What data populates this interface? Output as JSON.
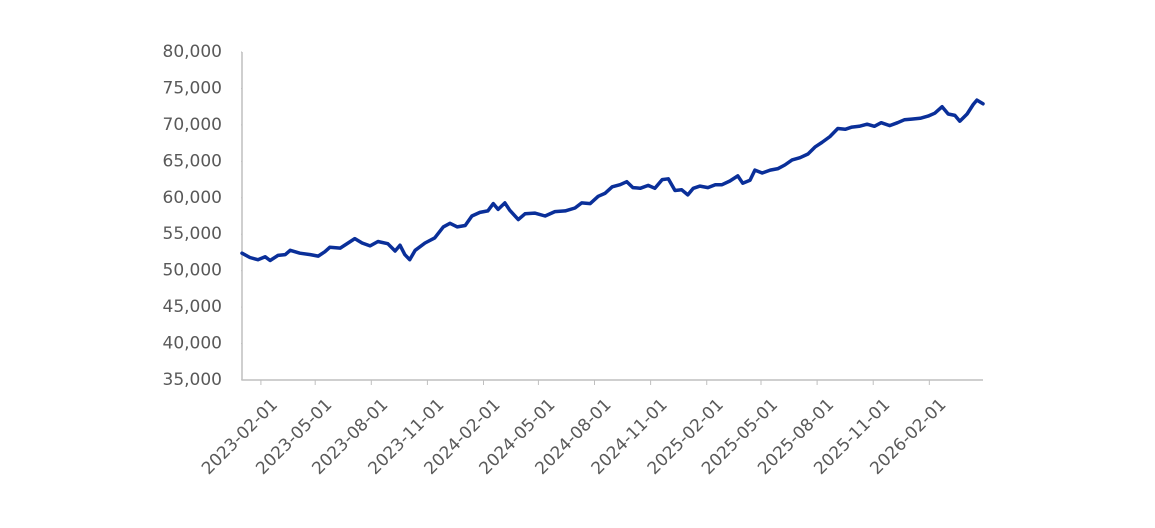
{
  "chart_data": {
    "type": "line",
    "x": [
      "2023-01-01",
      "2023-01-14",
      "2023-01-27",
      "2023-02-08",
      "2023-02-16",
      "2023-03-01",
      "2023-03-13",
      "2023-03-21",
      "2023-04-06",
      "2023-04-23",
      "2023-05-06",
      "2023-05-17",
      "2023-05-25",
      "2023-06-11",
      "2023-06-24",
      "2023-07-05",
      "2023-07-17",
      "2023-07-30",
      "2023-08-12",
      "2023-08-28",
      "2023-09-09",
      "2023-09-17",
      "2023-09-25",
      "2023-10-03",
      "2023-10-12",
      "2023-10-28",
      "2023-11-13",
      "2023-11-27",
      "2023-12-08",
      "2023-12-20",
      "2024-01-02",
      "2024-01-13",
      "2024-01-26",
      "2024-02-08",
      "2024-02-17",
      "2024-02-25",
      "2024-03-07",
      "2024-03-15",
      "2024-03-29",
      "2024-04-09",
      "2024-04-25",
      "2024-05-12",
      "2024-05-28",
      "2024-06-14",
      "2024-06-30",
      "2024-07-11",
      "2024-07-25",
      "2024-08-07",
      "2024-08-18",
      "2024-08-30",
      "2024-09-12",
      "2024-09-23",
      "2024-10-03",
      "2024-10-15",
      "2024-10-28",
      "2024-11-08",
      "2024-11-20",
      "2024-11-30",
      "2024-12-11",
      "2024-12-22",
      "2025-01-01",
      "2025-01-10",
      "2025-01-21",
      "2025-02-03",
      "2025-02-15",
      "2025-02-26",
      "2025-03-11",
      "2025-03-24",
      "2025-04-01",
      "2025-04-13",
      "2025-04-21",
      "2025-05-03",
      "2025-05-16",
      "2025-05-29",
      "2025-06-09",
      "2025-06-21",
      "2025-07-04",
      "2025-07-17",
      "2025-07-29",
      "2025-08-09",
      "2025-08-22",
      "2025-09-04",
      "2025-09-16",
      "2025-09-27",
      "2025-10-09",
      "2025-10-22",
      "2025-11-03",
      "2025-11-14",
      "2025-11-28",
      "2025-12-11",
      "2025-12-22",
      "2026-01-03",
      "2026-01-17",
      "2026-01-30",
      "2026-02-10",
      "2026-02-22",
      "2026-03-04",
      "2026-03-15",
      "2026-03-23",
      "2026-04-04",
      "2026-04-14",
      "2026-04-20",
      "2026-04-30"
    ],
    "series": [
      {
        "color": "#0a2f99",
        "values": [
          52400,
          51800,
          51500,
          51900,
          51400,
          52100,
          52200,
          52800,
          52400,
          52200,
          52000,
          52600,
          53200,
          53100,
          53800,
          54400,
          53800,
          53400,
          54000,
          53700,
          52700,
          53500,
          52200,
          51500,
          52800,
          53800,
          54500,
          56000,
          56500,
          56000,
          56200,
          57500,
          58000,
          58200,
          59200,
          58400,
          59300,
          58300,
          57000,
          57800,
          57900,
          57500,
          58100,
          58200,
          58600,
          59300,
          59200,
          60200,
          60600,
          61500,
          61800,
          62200,
          61400,
          61300,
          61700,
          61300,
          62500,
          62600,
          61000,
          61100,
          60400,
          61300,
          61600,
          61400,
          61800,
          61800,
          62300,
          63000,
          62000,
          62400,
          63800,
          63400,
          63800,
          64000,
          64500,
          65200,
          65500,
          66000,
          67000,
          67600,
          68400,
          69500,
          69400,
          69700,
          69800,
          70100,
          69800,
          70300,
          69900,
          70300,
          70700,
          70800,
          70900,
          71200,
          71600,
          72500,
          71500,
          71300,
          70500,
          71500,
          72800,
          73400,
          72900
        ]
      }
    ],
    "xlim": [
      "2023-01-01",
      "2026-04-30"
    ],
    "xticks": [
      "2023-02-01",
      "2023-05-01",
      "2023-08-01",
      "2023-11-01",
      "2024-02-01",
      "2024-05-01",
      "2024-08-01",
      "2024-11-01",
      "2025-02-01",
      "2025-05-01",
      "2025-08-01",
      "2025-11-01",
      "2026-02-01"
    ],
    "ylim": [
      35000,
      80000
    ],
    "yticks": [
      {
        "value": 35000,
        "label": "35,000"
      },
      {
        "value": 40000,
        "label": "40,000"
      },
      {
        "value": 45000,
        "label": "45,000"
      },
      {
        "value": 50000,
        "label": "50,000"
      },
      {
        "value": 55000,
        "label": "55,000"
      },
      {
        "value": 60000,
        "label": "60,000"
      },
      {
        "value": 65000,
        "label": "65,000"
      },
      {
        "value": 70000,
        "label": "70,000"
      },
      {
        "value": 75000,
        "label": "75,000"
      },
      {
        "value": 80000,
        "label": "80,000"
      }
    ],
    "grid": false
  }
}
